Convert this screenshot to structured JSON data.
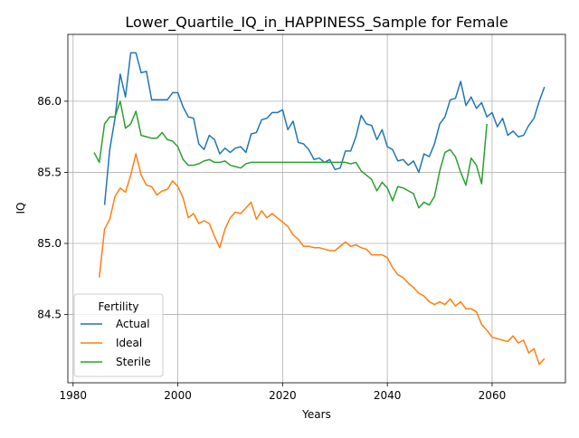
{
  "chart_data": {
    "type": "line",
    "title": "Lower_Quartile_IQ_in_HAPPINESS_Sample for Female",
    "xlabel": "Years",
    "ylabel": "IQ",
    "xlim": [
      1979,
      2074
    ],
    "ylim": [
      84.02,
      86.47
    ],
    "x_ticks": [
      1980,
      2000,
      2020,
      2040,
      2060
    ],
    "y_ticks": [
      84.5,
      85.0,
      85.5,
      86.0
    ],
    "grid": true,
    "legend": {
      "title": "Fertility",
      "position": "lower-left"
    },
    "series": [
      {
        "name": "Actual",
        "color": "#1f77b4",
        "x": [
          1986,
          1987,
          1988,
          1989,
          1990,
          1991,
          1992,
          1993,
          1994,
          1995,
          1996,
          1997,
          1998,
          1999,
          2000,
          2001,
          2002,
          2003,
          2004,
          2005,
          2006,
          2007,
          2008,
          2009,
          2010,
          2011,
          2012,
          2013,
          2014,
          2015,
          2016,
          2017,
          2018,
          2019,
          2020,
          2021,
          2022,
          2023,
          2024,
          2025,
          2026,
          2027,
          2028,
          2029,
          2030,
          2031,
          2032,
          2033,
          2034,
          2035,
          2036,
          2037,
          2038,
          2039,
          2040,
          2041,
          2042,
          2043,
          2044,
          2045,
          2046,
          2047,
          2048,
          2049,
          2050,
          2051,
          2052,
          2053,
          2054,
          2055,
          2056,
          2057,
          2058,
          2059,
          2060,
          2061,
          2062,
          2063,
          2064,
          2065,
          2066,
          2067,
          2068,
          2069,
          2070
        ],
        "y": [
          85.27,
          85.66,
          85.88,
          86.19,
          86.03,
          86.34,
          86.34,
          86.2,
          86.21,
          86.01,
          86.01,
          86.01,
          86.01,
          86.06,
          86.06,
          85.96,
          85.89,
          85.88,
          85.7,
          85.66,
          85.76,
          85.73,
          85.63,
          85.67,
          85.64,
          85.67,
          85.68,
          85.64,
          85.77,
          85.78,
          85.87,
          85.88,
          85.92,
          85.92,
          85.94,
          85.8,
          85.86,
          85.71,
          85.7,
          85.66,
          85.59,
          85.6,
          85.57,
          85.59,
          85.52,
          85.53,
          85.65,
          85.65,
          85.75,
          85.9,
          85.84,
          85.83,
          85.73,
          85.8,
          85.68,
          85.66,
          85.58,
          85.59,
          85.55,
          85.58,
          85.5,
          85.63,
          85.61,
          85.7,
          85.84,
          85.89,
          86.01,
          86.02,
          86.14,
          85.97,
          86.03,
          85.95,
          85.99,
          85.89,
          85.92,
          85.82,
          85.88,
          85.76,
          85.79,
          85.75,
          85.76,
          85.83,
          85.88,
          86.0,
          86.1
        ]
      },
      {
        "name": "Ideal",
        "color": "#ff7f0e",
        "x": [
          1985,
          1986,
          1987,
          1988,
          1989,
          1990,
          1991,
          1992,
          1993,
          1994,
          1995,
          1996,
          1997,
          1998,
          1999,
          2000,
          2001,
          2002,
          2003,
          2004,
          2005,
          2006,
          2007,
          2008,
          2009,
          2010,
          2011,
          2012,
          2013,
          2014,
          2015,
          2016,
          2017,
          2018,
          2019,
          2020,
          2021,
          2022,
          2023,
          2024,
          2025,
          2026,
          2027,
          2028,
          2029,
          2030,
          2031,
          2032,
          2033,
          2034,
          2035,
          2036,
          2037,
          2038,
          2039,
          2040,
          2041,
          2042,
          2043,
          2044,
          2045,
          2046,
          2047,
          2048,
          2049,
          2050,
          2051,
          2052,
          2053,
          2054,
          2055,
          2056,
          2057,
          2058,
          2059,
          2060,
          2061,
          2062,
          2063,
          2064,
          2065,
          2066,
          2067,
          2068,
          2069,
          2070
        ],
        "y": [
          84.76,
          85.1,
          85.17,
          85.33,
          85.39,
          85.36,
          85.48,
          85.63,
          85.48,
          85.41,
          85.4,
          85.34,
          85.37,
          85.38,
          85.44,
          85.4,
          85.32,
          85.18,
          85.21,
          85.14,
          85.16,
          85.14,
          85.05,
          84.97,
          85.1,
          85.18,
          85.22,
          85.21,
          85.25,
          85.29,
          85.17,
          85.23,
          85.18,
          85.21,
          85.18,
          85.15,
          85.12,
          85.06,
          85.03,
          84.98,
          84.98,
          84.97,
          84.97,
          84.96,
          84.95,
          84.95,
          84.98,
          85.01,
          84.98,
          84.99,
          84.97,
          84.96,
          84.92,
          84.92,
          84.92,
          84.9,
          84.83,
          84.78,
          84.76,
          84.72,
          84.69,
          84.65,
          84.63,
          84.59,
          84.57,
          84.59,
          84.57,
          84.61,
          84.56,
          84.59,
          84.54,
          84.54,
          84.52,
          84.43,
          84.39,
          84.34,
          84.33,
          84.32,
          84.31,
          84.35,
          84.3,
          84.32,
          84.23,
          84.26,
          84.15,
          84.19
        ]
      },
      {
        "name": "Sterile",
        "color": "#2ca02c",
        "x": [
          1984,
          1985,
          1986,
          1987,
          1988,
          1989,
          1990,
          1991,
          1992,
          1993,
          1994,
          1995,
          1996,
          1997,
          1998,
          1999,
          2000,
          2001,
          2002,
          2003,
          2004,
          2005,
          2006,
          2007,
          2008,
          2009,
          2010,
          2011,
          2012,
          2013,
          2014,
          2015,
          2016,
          2017,
          2018,
          2019,
          2020,
          2021,
          2022,
          2023,
          2024,
          2025,
          2026,
          2027,
          2028,
          2029,
          2030,
          2031,
          2032,
          2033,
          2034,
          2035,
          2036,
          2037,
          2038,
          2039,
          2040,
          2041,
          2042,
          2043,
          2044,
          2045,
          2046,
          2047,
          2048,
          2049,
          2050,
          2051,
          2052,
          2053,
          2054,
          2055,
          2056,
          2057,
          2058,
          2059
        ],
        "y": [
          85.64,
          85.57,
          85.84,
          85.89,
          85.89,
          86.0,
          85.81,
          85.84,
          85.93,
          85.76,
          85.75,
          85.74,
          85.74,
          85.78,
          85.73,
          85.72,
          85.68,
          85.59,
          85.55,
          85.55,
          85.56,
          85.58,
          85.59,
          85.57,
          85.57,
          85.58,
          85.55,
          85.54,
          85.53,
          85.56,
          85.57,
          85.57,
          85.57,
          85.57,
          85.57,
          85.57,
          85.57,
          85.57,
          85.57,
          85.57,
          85.57,
          85.57,
          85.57,
          85.57,
          85.57,
          85.57,
          85.57,
          85.57,
          85.57,
          85.56,
          85.57,
          85.51,
          85.48,
          85.45,
          85.37,
          85.43,
          85.39,
          85.3,
          85.4,
          85.39,
          85.37,
          85.35,
          85.25,
          85.29,
          85.27,
          85.33,
          85.51,
          85.64,
          85.66,
          85.61,
          85.5,
          85.41,
          85.6,
          85.55,
          85.42,
          85.84
        ]
      }
    ]
  }
}
